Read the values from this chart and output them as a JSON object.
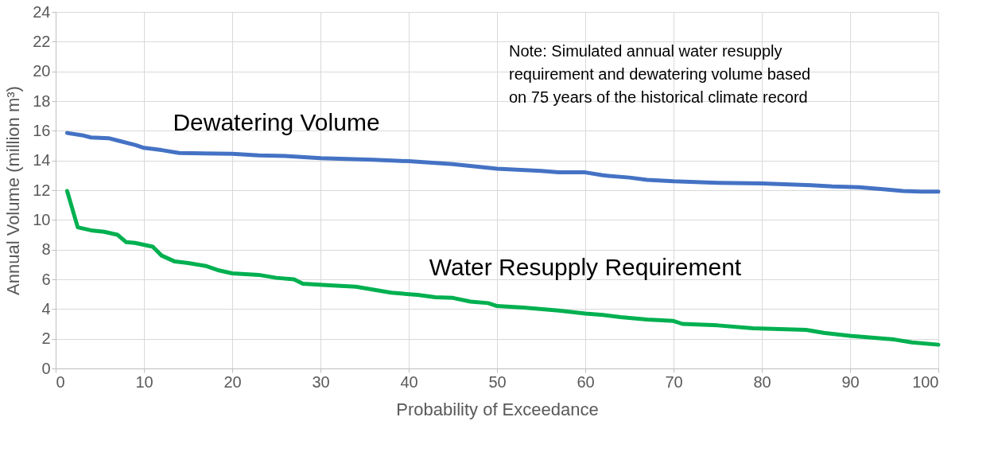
{
  "chart_data": {
    "type": "line",
    "xlabel": "Probability of Exceedance",
    "ylabel": "Annual Volume (million m³)",
    "xlim": [
      0,
      100
    ],
    "xticks": [
      0,
      10,
      20,
      30,
      40,
      50,
      60,
      70,
      80,
      90,
      100
    ],
    "ylim": [
      0,
      24
    ],
    "yticks": [
      0,
      2,
      4,
      6,
      8,
      10,
      12,
      14,
      16,
      18,
      20,
      22,
      24
    ],
    "grid": true,
    "marker": "none",
    "line_style": "solid",
    "annotations": [
      "Note: Simulated annual water resupply\nrequirement and dewatering volume based\non 75 years of the historical climate record"
    ],
    "series": [
      {
        "name": "Dewatering Volume",
        "color": "#4472c4",
        "x": [
          1.3,
          3,
          4,
          6,
          7,
          9,
          10,
          12,
          14,
          20,
          23,
          26,
          30,
          33,
          36,
          40,
          45,
          50,
          55,
          57,
          60,
          62,
          65,
          67,
          70,
          75,
          80,
          85,
          88,
          91,
          94,
          96,
          98,
          100
        ],
        "values": [
          15.85,
          15.7,
          15.55,
          15.5,
          15.35,
          15.05,
          14.85,
          14.7,
          14.5,
          14.45,
          14.35,
          14.3,
          14.15,
          14.1,
          14.05,
          13.95,
          13.75,
          13.45,
          13.3,
          13.2,
          13.2,
          13.0,
          12.85,
          12.7,
          12.6,
          12.5,
          12.45,
          12.35,
          12.25,
          12.2,
          12.05,
          11.95,
          11.9,
          11.9
        ]
      },
      {
        "name": "Water Resupply Requirement",
        "color": "#00b050",
        "x": [
          1.3,
          2.5,
          4,
          5.5,
          7,
          8,
          9,
          11,
          12,
          13.5,
          15,
          17,
          18.5,
          20,
          23,
          25,
          27,
          28,
          31,
          34,
          36,
          38,
          41,
          43,
          45,
          47,
          49,
          50,
          53,
          57,
          60,
          62,
          64,
          67,
          70,
          71,
          75,
          79,
          85,
          87,
          90,
          93,
          95,
          97,
          100
        ],
        "values": [
          11.95,
          9.5,
          9.3,
          9.2,
          9.0,
          8.5,
          8.45,
          8.2,
          7.6,
          7.2,
          7.1,
          6.9,
          6.6,
          6.4,
          6.3,
          6.1,
          6.0,
          5.7,
          5.6,
          5.5,
          5.3,
          5.1,
          4.95,
          4.8,
          4.75,
          4.5,
          4.4,
          4.2,
          4.1,
          3.9,
          3.7,
          3.6,
          3.45,
          3.3,
          3.2,
          3.0,
          2.9,
          2.7,
          2.6,
          2.4,
          2.2,
          2.05,
          1.95,
          1.75,
          1.6
        ]
      }
    ]
  }
}
